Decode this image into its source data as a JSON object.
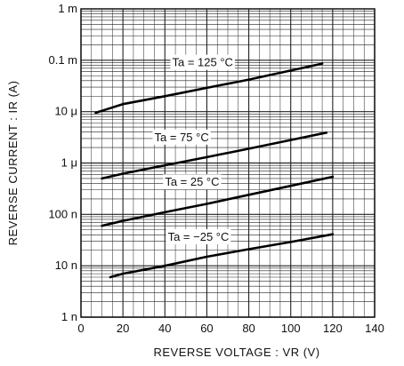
{
  "chart_data": {
    "type": "line",
    "xlabel": "REVERSE VOLTAGE : VR (V)",
    "ylabel": "REVERSE CURRENT : IR (A)",
    "xlim": [
      0,
      140
    ],
    "ylim": [
      1e-09,
      0.001
    ],
    "yscale": "log",
    "grid": true,
    "x_ticks": [
      0,
      20,
      40,
      60,
      80,
      100,
      120,
      140
    ],
    "x_tick_labels": [
      "0",
      "20",
      "40",
      "60",
      "80",
      "100",
      "120",
      "140"
    ],
    "y_ticks": [
      1e-09,
      1e-08,
      1e-07,
      1e-06,
      1e-05,
      0.0001,
      0.001
    ],
    "y_tick_labels": [
      "1 n",
      "10 n",
      "100 n",
      "1 μ",
      "10 μ",
      "0.1 m",
      "1 m"
    ],
    "series": [
      {
        "name": "Ta = 125 °C",
        "x": [
          7,
          20,
          40,
          60,
          80,
          100,
          115
        ],
        "y": [
          9.5e-06,
          1.4e-05,
          2e-05,
          2.9e-05,
          4.2e-05,
          6.3e-05,
          8.6e-05
        ]
      },
      {
        "name": "Ta = 75 °C",
        "x": [
          10,
          20,
          40,
          60,
          80,
          100,
          117
        ],
        "y": [
          5e-07,
          6.2e-07,
          9e-07,
          1.3e-06,
          1.9e-06,
          2.8e-06,
          3.9e-06
        ]
      },
      {
        "name": "Ta = 25 °C",
        "x": [
          10,
          20,
          40,
          60,
          80,
          100,
          120
        ],
        "y": [
          6e-08,
          7.5e-08,
          1.1e-07,
          1.6e-07,
          2.4e-07,
          3.6e-07,
          5.4e-07
        ]
      },
      {
        "name": "Ta = −25 °C",
        "x": [
          14,
          20,
          40,
          60,
          80,
          100,
          120
        ],
        "y": [
          6e-09,
          7e-09,
          1e-08,
          1.5e-08,
          2.1e-08,
          2.9e-08,
          4.1e-08
        ]
      }
    ]
  }
}
